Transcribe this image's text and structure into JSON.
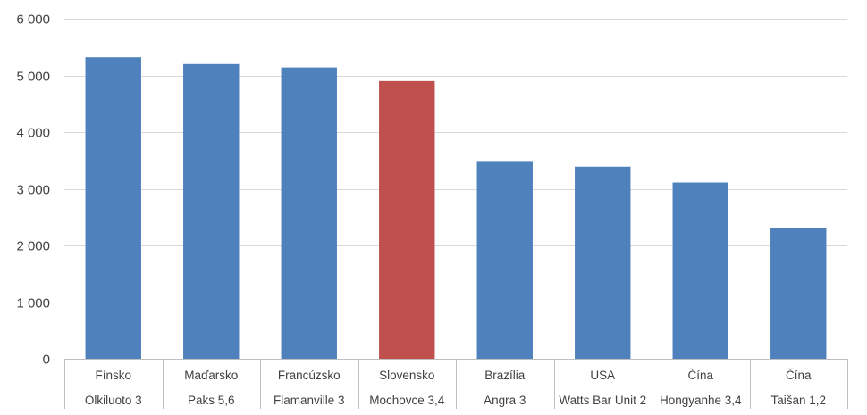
{
  "chart_data": {
    "type": "bar",
    "title": "",
    "xlabel": "",
    "ylabel": "",
    "ylim": [
      0,
      6000
    ],
    "yticks": [
      0,
      1000,
      2000,
      3000,
      4000,
      5000,
      6000
    ],
    "ytick_labels": [
      "0",
      "1 000",
      "2 000",
      "3 000",
      "4 000",
      "5 000",
      "6 000"
    ],
    "grid": true,
    "legend": "none",
    "categories": [
      {
        "country": "Fínsko",
        "plant": "Olkiluoto 3"
      },
      {
        "country": "Maďarsko",
        "plant": "Paks 5,6"
      },
      {
        "country": "Francúzsko",
        "plant": "Flamanville 3"
      },
      {
        "country": "Slovensko",
        "plant": "Mochovce 3,4"
      },
      {
        "country": "Brazília",
        "plant": "Angra 3"
      },
      {
        "country": "USA",
        "plant": "Watts Bar Unit 2"
      },
      {
        "country": "Čína",
        "plant": "Hongyanhe 3,4"
      },
      {
        "country": "Čína",
        "plant": "Taišan 1,2"
      }
    ],
    "values": [
      5320,
      5200,
      5140,
      4900,
      3490,
      3390,
      3110,
      2310
    ],
    "bar_colors": [
      "#4f81bd",
      "#4f81bd",
      "#4f81bd",
      "#c0504d",
      "#4f81bd",
      "#4f81bd",
      "#4f81bd",
      "#4f81bd"
    ]
  }
}
